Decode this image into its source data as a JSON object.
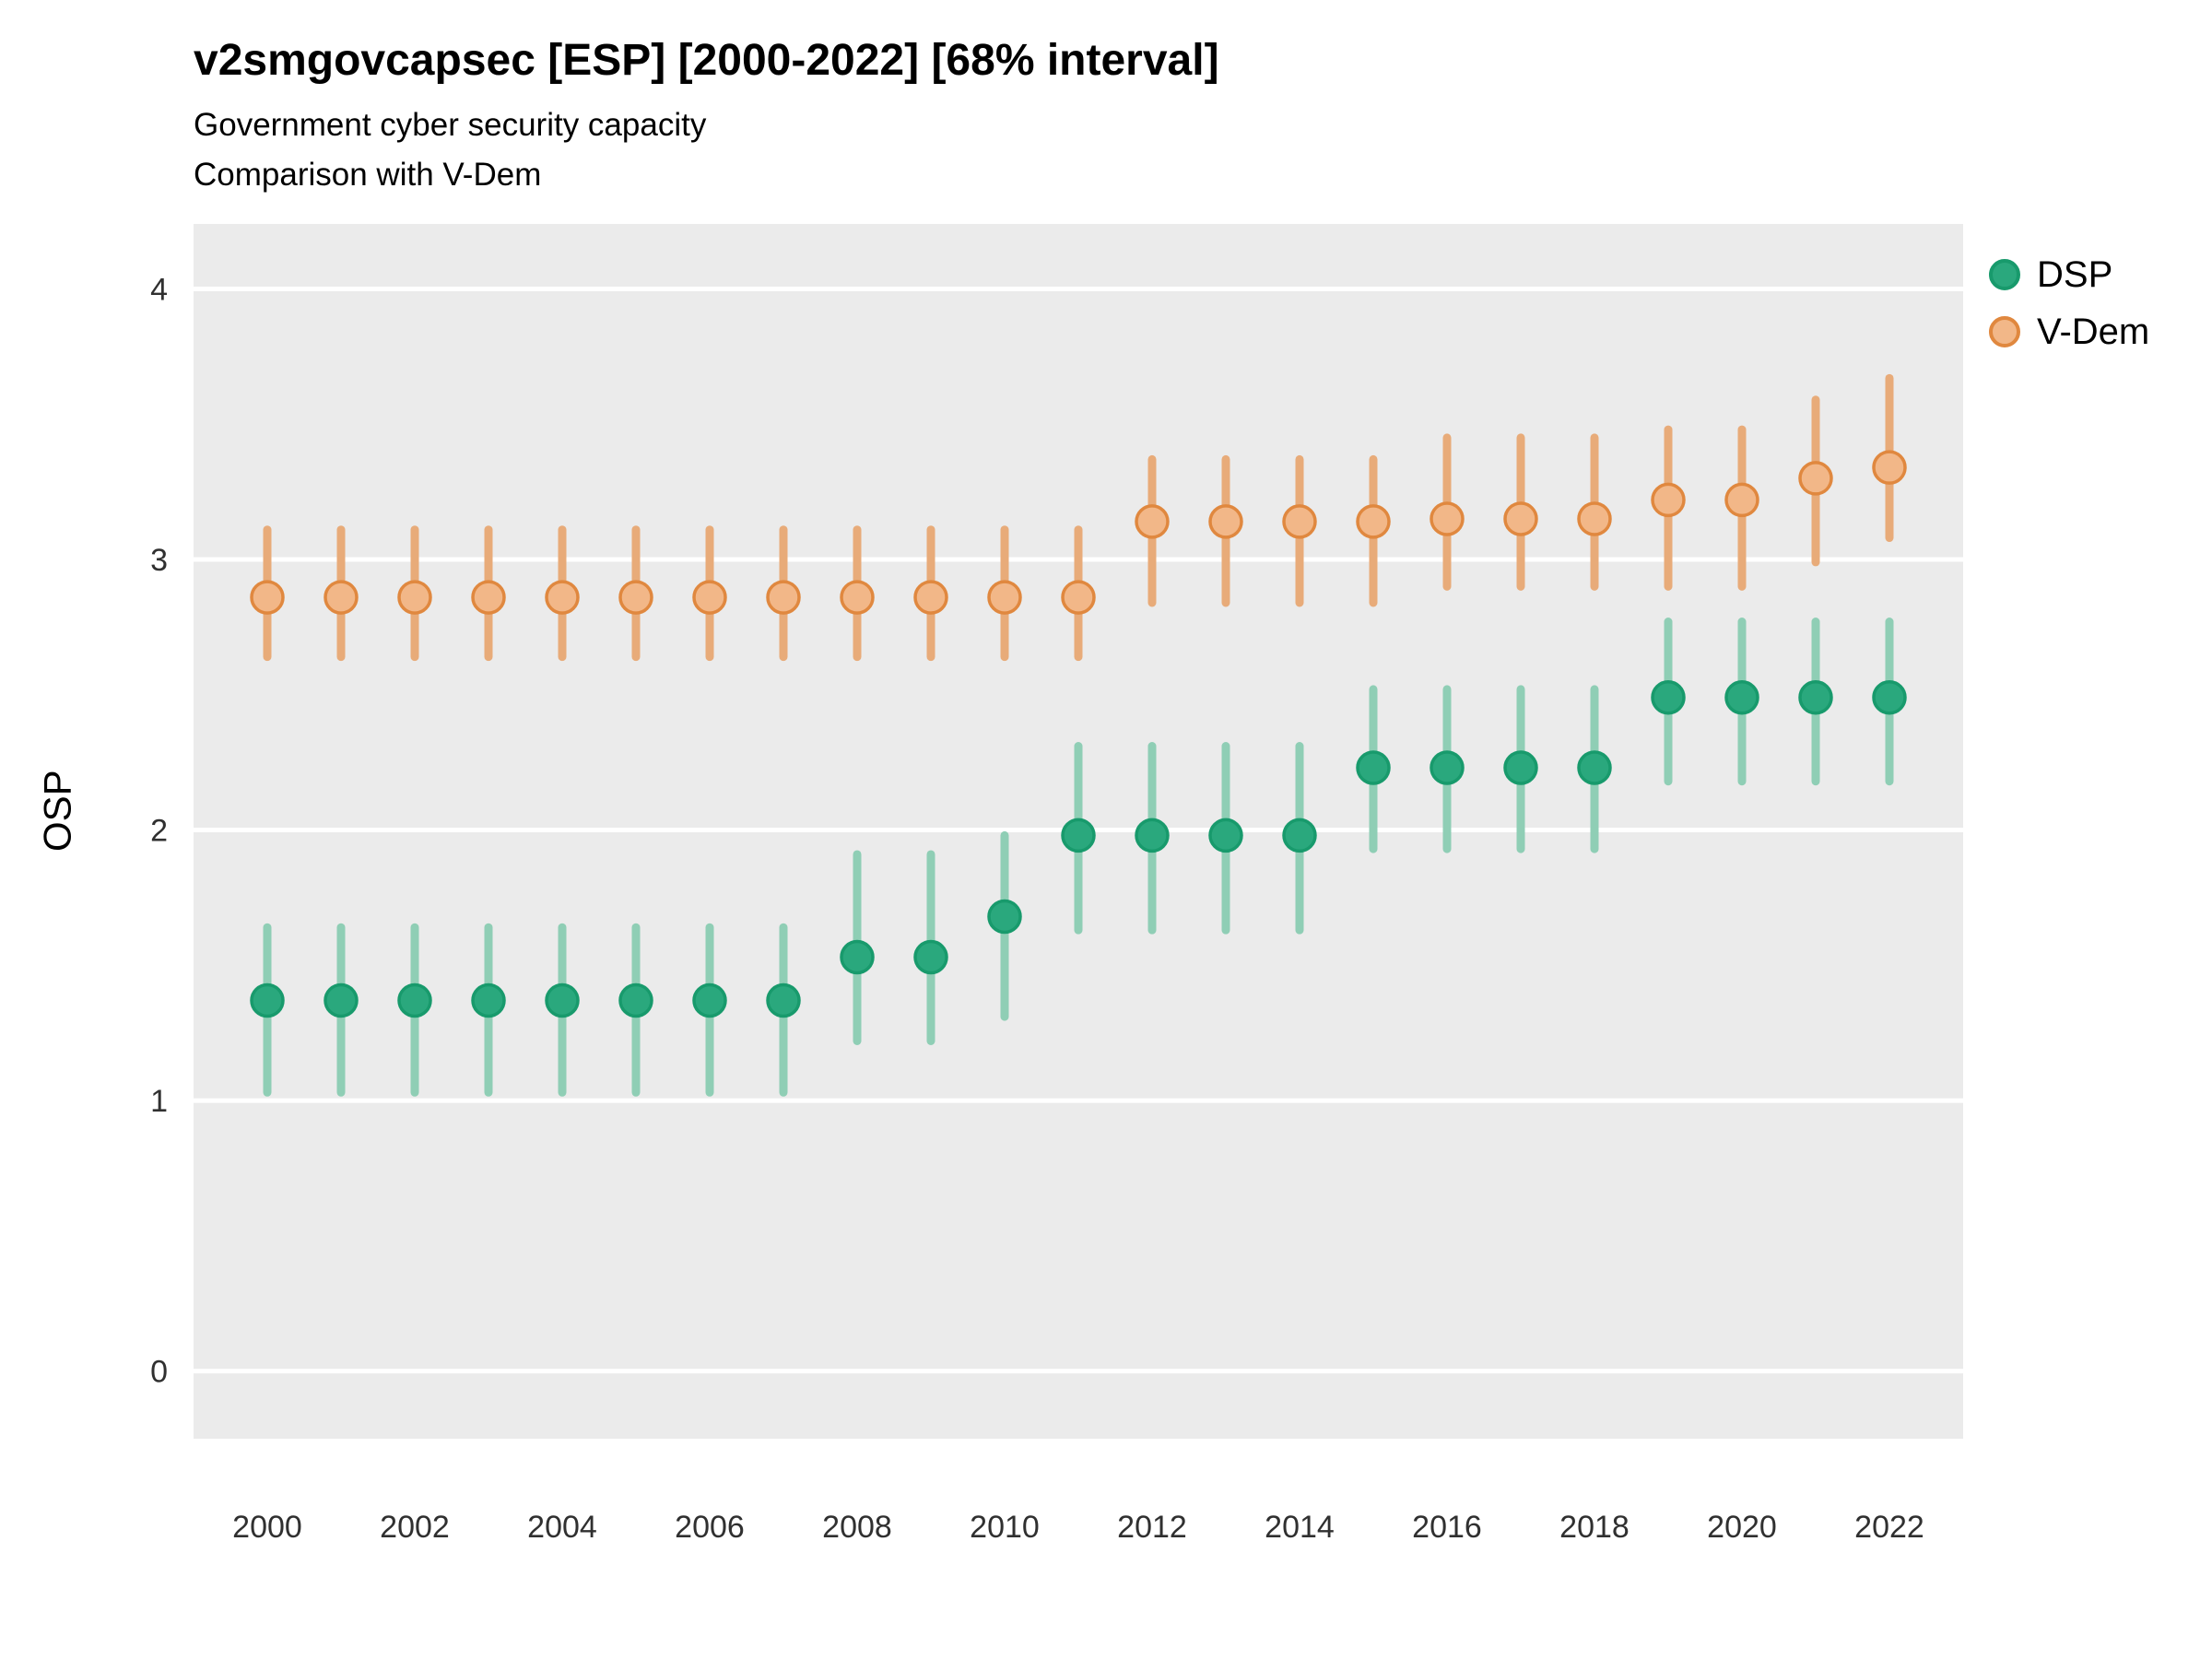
{
  "title": "v2smgovcapsec [ESP] [2000-2022] [68% interval]",
  "subtitle_line1": "Government cyber security capacity",
  "subtitle_line2": "Comparison with V-Dem",
  "y_axis_title": "OSP",
  "legend": {
    "position": "right-top-outside",
    "entries": [
      {
        "label": "DSP",
        "fill": "#2aa87d",
        "stroke": "#189a6c"
      },
      {
        "label": "V-Dem",
        "fill": "#f2b788",
        "stroke": "#e0883f"
      }
    ]
  },
  "colors": {
    "panel_background": "#ebebeb",
    "gridline": "#ffffff",
    "tick_label": "#303030",
    "dsp_point_fill": "#2aa87d",
    "dsp_point_stroke": "#189a6c",
    "dsp_errorbar": "#8fceb5",
    "vdem_point_fill": "#f2b788",
    "vdem_point_stroke": "#e0883f",
    "vdem_errorbar": "#e8ab79"
  },
  "chart_data": {
    "type": "scatter",
    "title": "v2smgovcapsec [ESP] [2000-2022] [68% interval]",
    "subtitle": [
      "Government cyber security capacity",
      "Comparison with V-Dem"
    ],
    "xlabel": "",
    "ylabel": "OSP",
    "interval": "68%",
    "grid": "horizontal-white-on-gray",
    "legend_position": "top-right outside",
    "x": [
      2000,
      2001,
      2002,
      2003,
      2004,
      2005,
      2006,
      2007,
      2008,
      2009,
      2010,
      2011,
      2012,
      2013,
      2014,
      2015,
      2016,
      2017,
      2018,
      2019,
      2020,
      2021,
      2022
    ],
    "xticks": [
      2000,
      2002,
      2004,
      2006,
      2008,
      2010,
      2012,
      2014,
      2016,
      2018,
      2020,
      2022
    ],
    "yticks": [
      0,
      1,
      2,
      3,
      4
    ],
    "xlim": [
      1999,
      2023
    ],
    "ylim": [
      -0.25,
      4.24
    ],
    "series": [
      {
        "name": "DSP",
        "values": [
          1.37,
          1.37,
          1.37,
          1.37,
          1.37,
          1.37,
          1.37,
          1.37,
          1.53,
          1.53,
          1.68,
          1.98,
          1.98,
          1.98,
          1.98,
          2.23,
          2.23,
          2.23,
          2.23,
          2.49,
          2.49,
          2.49,
          2.49
        ],
        "lower": [
          1.03,
          1.03,
          1.03,
          1.03,
          1.03,
          1.03,
          1.03,
          1.03,
          1.22,
          1.22,
          1.31,
          1.63,
          1.63,
          1.63,
          1.63,
          1.93,
          1.93,
          1.93,
          1.93,
          2.18,
          2.18,
          2.18,
          2.18
        ],
        "upper": [
          1.64,
          1.64,
          1.64,
          1.64,
          1.64,
          1.64,
          1.64,
          1.64,
          1.91,
          1.91,
          1.98,
          2.31,
          2.31,
          2.31,
          2.31,
          2.52,
          2.52,
          2.52,
          2.52,
          2.77,
          2.77,
          2.77,
          2.77
        ]
      },
      {
        "name": "V-Dem",
        "values": [
          2.86,
          2.86,
          2.86,
          2.86,
          2.86,
          2.86,
          2.86,
          2.86,
          2.86,
          2.86,
          2.86,
          2.86,
          3.14,
          3.14,
          3.14,
          3.14,
          3.15,
          3.15,
          3.15,
          3.22,
          3.22,
          3.3,
          3.34
        ],
        "lower": [
          2.64,
          2.64,
          2.64,
          2.64,
          2.64,
          2.64,
          2.64,
          2.64,
          2.64,
          2.64,
          2.64,
          2.64,
          2.84,
          2.84,
          2.84,
          2.84,
          2.9,
          2.9,
          2.9,
          2.9,
          2.9,
          2.99,
          3.08
        ],
        "upper": [
          3.11,
          3.11,
          3.11,
          3.11,
          3.11,
          3.11,
          3.11,
          3.11,
          3.11,
          3.11,
          3.11,
          3.11,
          3.37,
          3.37,
          3.37,
          3.37,
          3.45,
          3.45,
          3.45,
          3.48,
          3.48,
          3.59,
          3.67
        ]
      }
    ]
  }
}
